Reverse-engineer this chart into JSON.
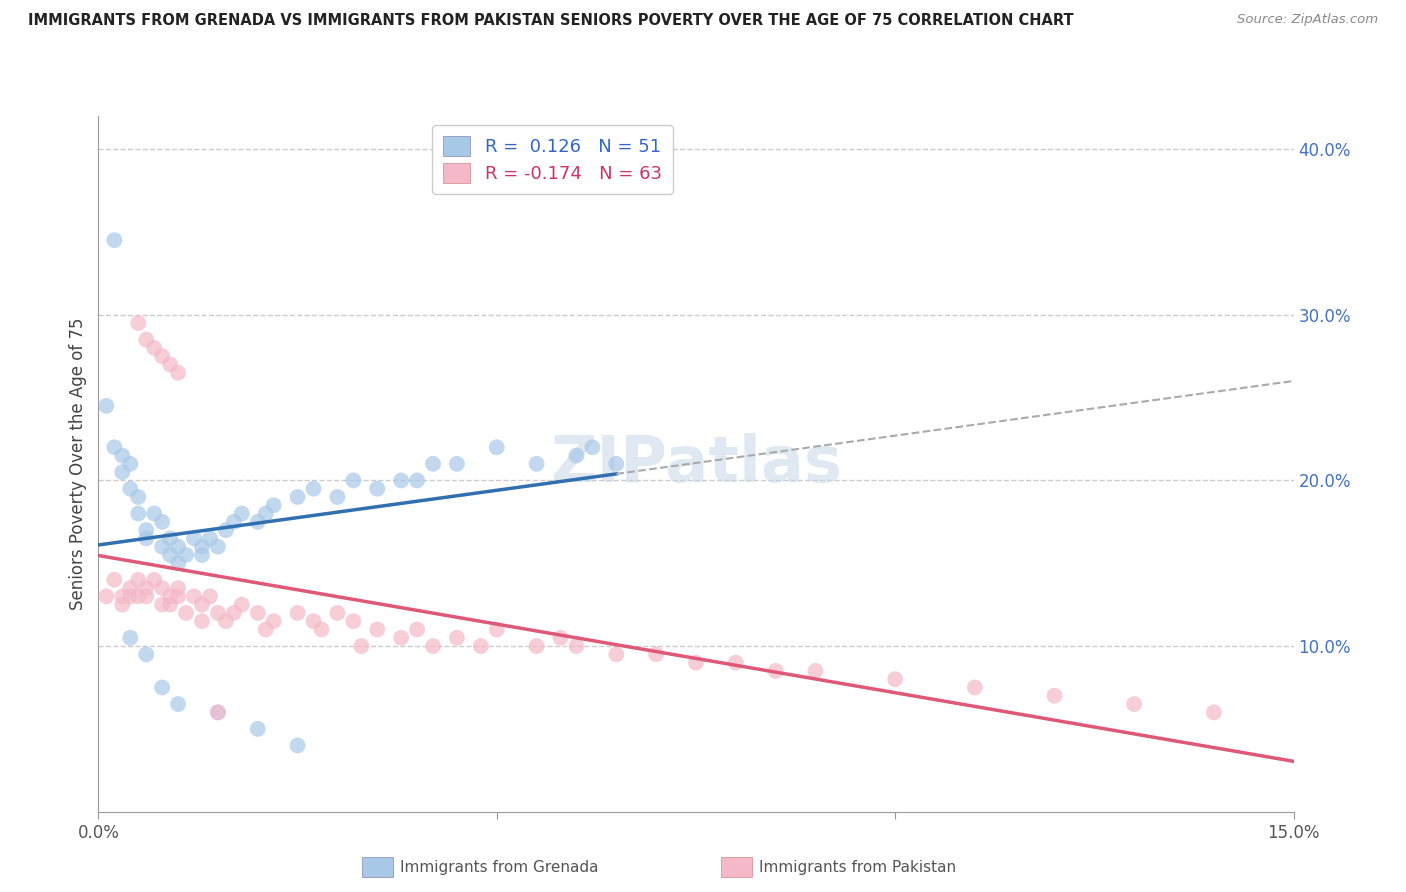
{
  "title": "IMMIGRANTS FROM GRENADA VS IMMIGRANTS FROM PAKISTAN SENIORS POVERTY OVER THE AGE OF 75 CORRELATION CHART",
  "source": "Source: ZipAtlas.com",
  "ylabel": "Seniors Poverty Over the Age of 75",
  "xlim": [
    0.0,
    0.15
  ],
  "ylim": [
    0.0,
    0.42
  ],
  "grenada_color": "#a8c8e8",
  "pakistan_color": "#f4b8c8",
  "grenada_line_color": "#3070b0",
  "pakistan_line_color": "#e05878",
  "R_grenada": 0.126,
  "N_grenada": 51,
  "R_pakistan": -0.174,
  "N_pakistan": 63,
  "watermark": "ZIPatlas",
  "background_color": "#ffffff",
  "grid_color": "#cccccc",
  "title_color": "#222222",
  "grenada_x": [
    0.001,
    0.002,
    0.003,
    0.003,
    0.004,
    0.004,
    0.005,
    0.005,
    0.006,
    0.006,
    0.007,
    0.008,
    0.008,
    0.009,
    0.009,
    0.01,
    0.01,
    0.011,
    0.012,
    0.013,
    0.013,
    0.014,
    0.015,
    0.016,
    0.017,
    0.018,
    0.02,
    0.021,
    0.022,
    0.025,
    0.027,
    0.03,
    0.032,
    0.035,
    0.038,
    0.04,
    0.042,
    0.045,
    0.05,
    0.055,
    0.06,
    0.062,
    0.065,
    0.002,
    0.004,
    0.006,
    0.008,
    0.01,
    0.015,
    0.02,
    0.025
  ],
  "grenada_y": [
    0.245,
    0.22,
    0.215,
    0.205,
    0.21,
    0.195,
    0.19,
    0.18,
    0.17,
    0.165,
    0.18,
    0.175,
    0.16,
    0.165,
    0.155,
    0.16,
    0.15,
    0.155,
    0.165,
    0.16,
    0.155,
    0.165,
    0.16,
    0.17,
    0.175,
    0.18,
    0.175,
    0.18,
    0.185,
    0.19,
    0.195,
    0.19,
    0.2,
    0.195,
    0.2,
    0.2,
    0.21,
    0.21,
    0.22,
    0.21,
    0.215,
    0.22,
    0.21,
    0.345,
    0.105,
    0.095,
    0.075,
    0.065,
    0.06,
    0.05,
    0.04
  ],
  "pakistan_x": [
    0.001,
    0.002,
    0.003,
    0.003,
    0.004,
    0.004,
    0.005,
    0.005,
    0.006,
    0.006,
    0.007,
    0.008,
    0.008,
    0.009,
    0.009,
    0.01,
    0.01,
    0.011,
    0.012,
    0.013,
    0.013,
    0.014,
    0.015,
    0.016,
    0.017,
    0.018,
    0.02,
    0.021,
    0.022,
    0.025,
    0.027,
    0.028,
    0.03,
    0.032,
    0.033,
    0.035,
    0.038,
    0.04,
    0.042,
    0.045,
    0.048,
    0.05,
    0.055,
    0.058,
    0.06,
    0.065,
    0.07,
    0.075,
    0.08,
    0.085,
    0.09,
    0.1,
    0.11,
    0.12,
    0.13,
    0.14,
    0.005,
    0.006,
    0.007,
    0.008,
    0.009,
    0.01,
    0.015
  ],
  "pakistan_y": [
    0.13,
    0.14,
    0.13,
    0.125,
    0.135,
    0.13,
    0.14,
    0.13,
    0.13,
    0.135,
    0.14,
    0.135,
    0.125,
    0.13,
    0.125,
    0.13,
    0.135,
    0.12,
    0.13,
    0.125,
    0.115,
    0.13,
    0.12,
    0.115,
    0.12,
    0.125,
    0.12,
    0.11,
    0.115,
    0.12,
    0.115,
    0.11,
    0.12,
    0.115,
    0.1,
    0.11,
    0.105,
    0.11,
    0.1,
    0.105,
    0.1,
    0.11,
    0.1,
    0.105,
    0.1,
    0.095,
    0.095,
    0.09,
    0.09,
    0.085,
    0.085,
    0.08,
    0.075,
    0.07,
    0.065,
    0.06,
    0.295,
    0.285,
    0.28,
    0.275,
    0.27,
    0.265,
    0.06
  ]
}
